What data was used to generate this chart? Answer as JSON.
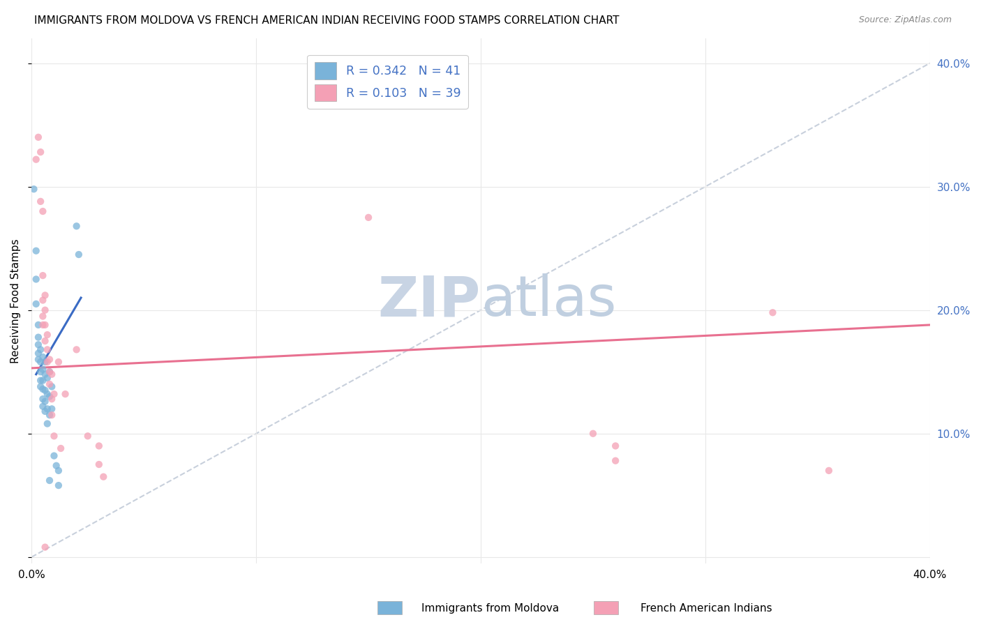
{
  "title": "IMMIGRANTS FROM MOLDOVA VS FRENCH AMERICAN INDIAN RECEIVING FOOD STAMPS CORRELATION CHART",
  "source": "Source: ZipAtlas.com",
  "ylabel": "Receiving Food Stamps",
  "xlim": [
    0.0,
    0.4
  ],
  "ylim": [
    -0.005,
    0.42
  ],
  "legend_label_blue": "Immigrants from Moldova",
  "legend_label_pink": "French American Indians",
  "watermark_zip": "ZIP",
  "watermark_atlas": "atlas",
  "blue_scatter": [
    [
      0.001,
      0.298
    ],
    [
      0.002,
      0.248
    ],
    [
      0.002,
      0.225
    ],
    [
      0.002,
      0.205
    ],
    [
      0.003,
      0.188
    ],
    [
      0.003,
      0.178
    ],
    [
      0.003,
      0.172
    ],
    [
      0.003,
      0.165
    ],
    [
      0.003,
      0.16
    ],
    [
      0.004,
      0.168
    ],
    [
      0.004,
      0.158
    ],
    [
      0.004,
      0.15
    ],
    [
      0.004,
      0.143
    ],
    [
      0.004,
      0.138
    ],
    [
      0.005,
      0.162
    ],
    [
      0.005,
      0.152
    ],
    [
      0.005,
      0.143
    ],
    [
      0.005,
      0.136
    ],
    [
      0.005,
      0.128
    ],
    [
      0.005,
      0.122
    ],
    [
      0.006,
      0.158
    ],
    [
      0.006,
      0.148
    ],
    [
      0.006,
      0.135
    ],
    [
      0.006,
      0.126
    ],
    [
      0.006,
      0.118
    ],
    [
      0.007,
      0.145
    ],
    [
      0.007,
      0.132
    ],
    [
      0.007,
      0.12
    ],
    [
      0.007,
      0.108
    ],
    [
      0.008,
      0.15
    ],
    [
      0.008,
      0.13
    ],
    [
      0.008,
      0.115
    ],
    [
      0.009,
      0.138
    ],
    [
      0.009,
      0.12
    ],
    [
      0.01,
      0.082
    ],
    [
      0.011,
      0.074
    ],
    [
      0.012,
      0.07
    ],
    [
      0.012,
      0.058
    ],
    [
      0.02,
      0.268
    ],
    [
      0.021,
      0.245
    ],
    [
      0.008,
      0.062
    ]
  ],
  "pink_scatter": [
    [
      0.002,
      0.322
    ],
    [
      0.003,
      0.34
    ],
    [
      0.004,
      0.328
    ],
    [
      0.004,
      0.288
    ],
    [
      0.005,
      0.28
    ],
    [
      0.005,
      0.228
    ],
    [
      0.005,
      0.208
    ],
    [
      0.005,
      0.195
    ],
    [
      0.005,
      0.188
    ],
    [
      0.006,
      0.212
    ],
    [
      0.006,
      0.2
    ],
    [
      0.006,
      0.188
    ],
    [
      0.006,
      0.175
    ],
    [
      0.007,
      0.18
    ],
    [
      0.007,
      0.168
    ],
    [
      0.007,
      0.158
    ],
    [
      0.008,
      0.16
    ],
    [
      0.008,
      0.15
    ],
    [
      0.008,
      0.14
    ],
    [
      0.009,
      0.148
    ],
    [
      0.009,
      0.128
    ],
    [
      0.009,
      0.115
    ],
    [
      0.01,
      0.132
    ],
    [
      0.01,
      0.098
    ],
    [
      0.012,
      0.158
    ],
    [
      0.013,
      0.088
    ],
    [
      0.015,
      0.132
    ],
    [
      0.02,
      0.168
    ],
    [
      0.025,
      0.098
    ],
    [
      0.03,
      0.09
    ],
    [
      0.03,
      0.075
    ],
    [
      0.032,
      0.065
    ],
    [
      0.15,
      0.275
    ],
    [
      0.25,
      0.1
    ],
    [
      0.26,
      0.09
    ],
    [
      0.26,
      0.078
    ],
    [
      0.33,
      0.198
    ],
    [
      0.355,
      0.07
    ],
    [
      0.006,
      0.008
    ]
  ],
  "blue_line_x": [
    0.002,
    0.022
  ],
  "blue_line_y": [
    0.148,
    0.21
  ],
  "pink_line_x": [
    0.0,
    0.4
  ],
  "pink_line_y": [
    0.153,
    0.188
  ],
  "diagonal_line_x": [
    0.0,
    0.4
  ],
  "diagonal_line_y": [
    0.0,
    0.4
  ],
  "blue_color": "#7ab3d9",
  "pink_color": "#f4a0b5",
  "blue_line_color": "#3a6bc4",
  "pink_line_color": "#e87090",
  "diagonal_color": "#c8d0dc",
  "grid_color": "#e8e8e8",
  "title_fontsize": 11,
  "axis_label_fontsize": 11,
  "tick_fontsize": 11,
  "scatter_alpha": 0.75,
  "scatter_size": 55,
  "watermark_color_zip": "#c8d4e4",
  "watermark_color_atlas": "#c0cfe0",
  "watermark_fontsize": 58,
  "right_tick_color": "#4472c4"
}
